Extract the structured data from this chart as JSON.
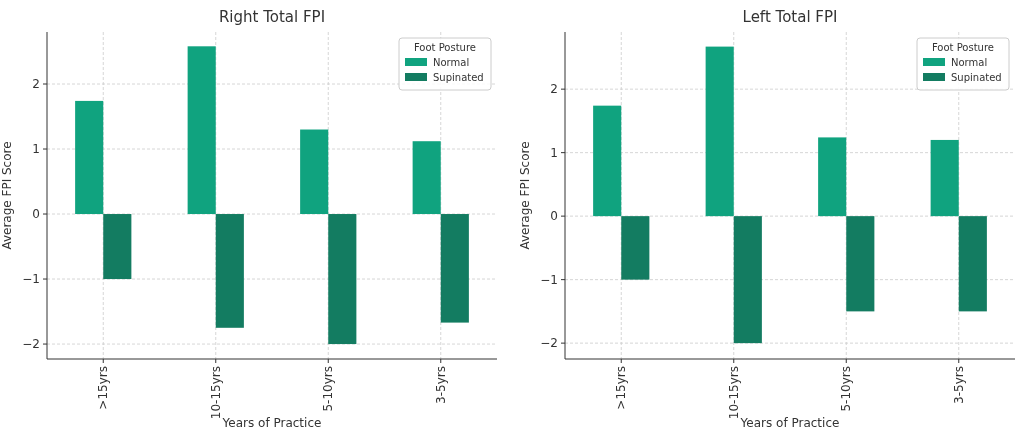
{
  "chart_data": [
    {
      "type": "bar",
      "title": "Right Total FPI",
      "xlabel": "Years of Practice",
      "ylabel": "Average FPI Score",
      "legend_title": "Foot Posture",
      "categories": [
        ">15yrs",
        "10-15yrs",
        "5-10yrs",
        "3-5yrs"
      ],
      "series": [
        {
          "name": "Normal",
          "color": "#10a37f",
          "values": [
            1.74,
            2.58,
            1.3,
            1.12
          ]
        },
        {
          "name": "Supinated",
          "color": "#137c61",
          "values": [
            -1,
            -1.75,
            -2,
            -1.67
          ]
        }
      ],
      "ylim": [
        -2.23,
        2.8
      ],
      "yticks": [
        -2,
        -1,
        0,
        1,
        2
      ],
      "grid": true,
      "legend": "top right"
    },
    {
      "type": "bar",
      "title": "Left Total FPI",
      "xlabel": "Years of Practice",
      "ylabel": "Average FPI Score",
      "legend_title": "Foot Posture",
      "categories": [
        ">15yrs",
        "10-15yrs",
        "5-10yrs",
        "3-5yrs"
      ],
      "series": [
        {
          "name": "Normal",
          "color": "#10a37f",
          "values": [
            1.74,
            2.67,
            1.24,
            1.2
          ]
        },
        {
          "name": "Supinated",
          "color": "#137c61",
          "values": [
            -1,
            -2,
            -1.5,
            -1.5
          ]
        }
      ],
      "ylim": [
        -2.25,
        2.9
      ],
      "yticks": [
        -2,
        -1,
        0,
        1,
        2
      ],
      "grid": true,
      "legend": "top right"
    }
  ]
}
